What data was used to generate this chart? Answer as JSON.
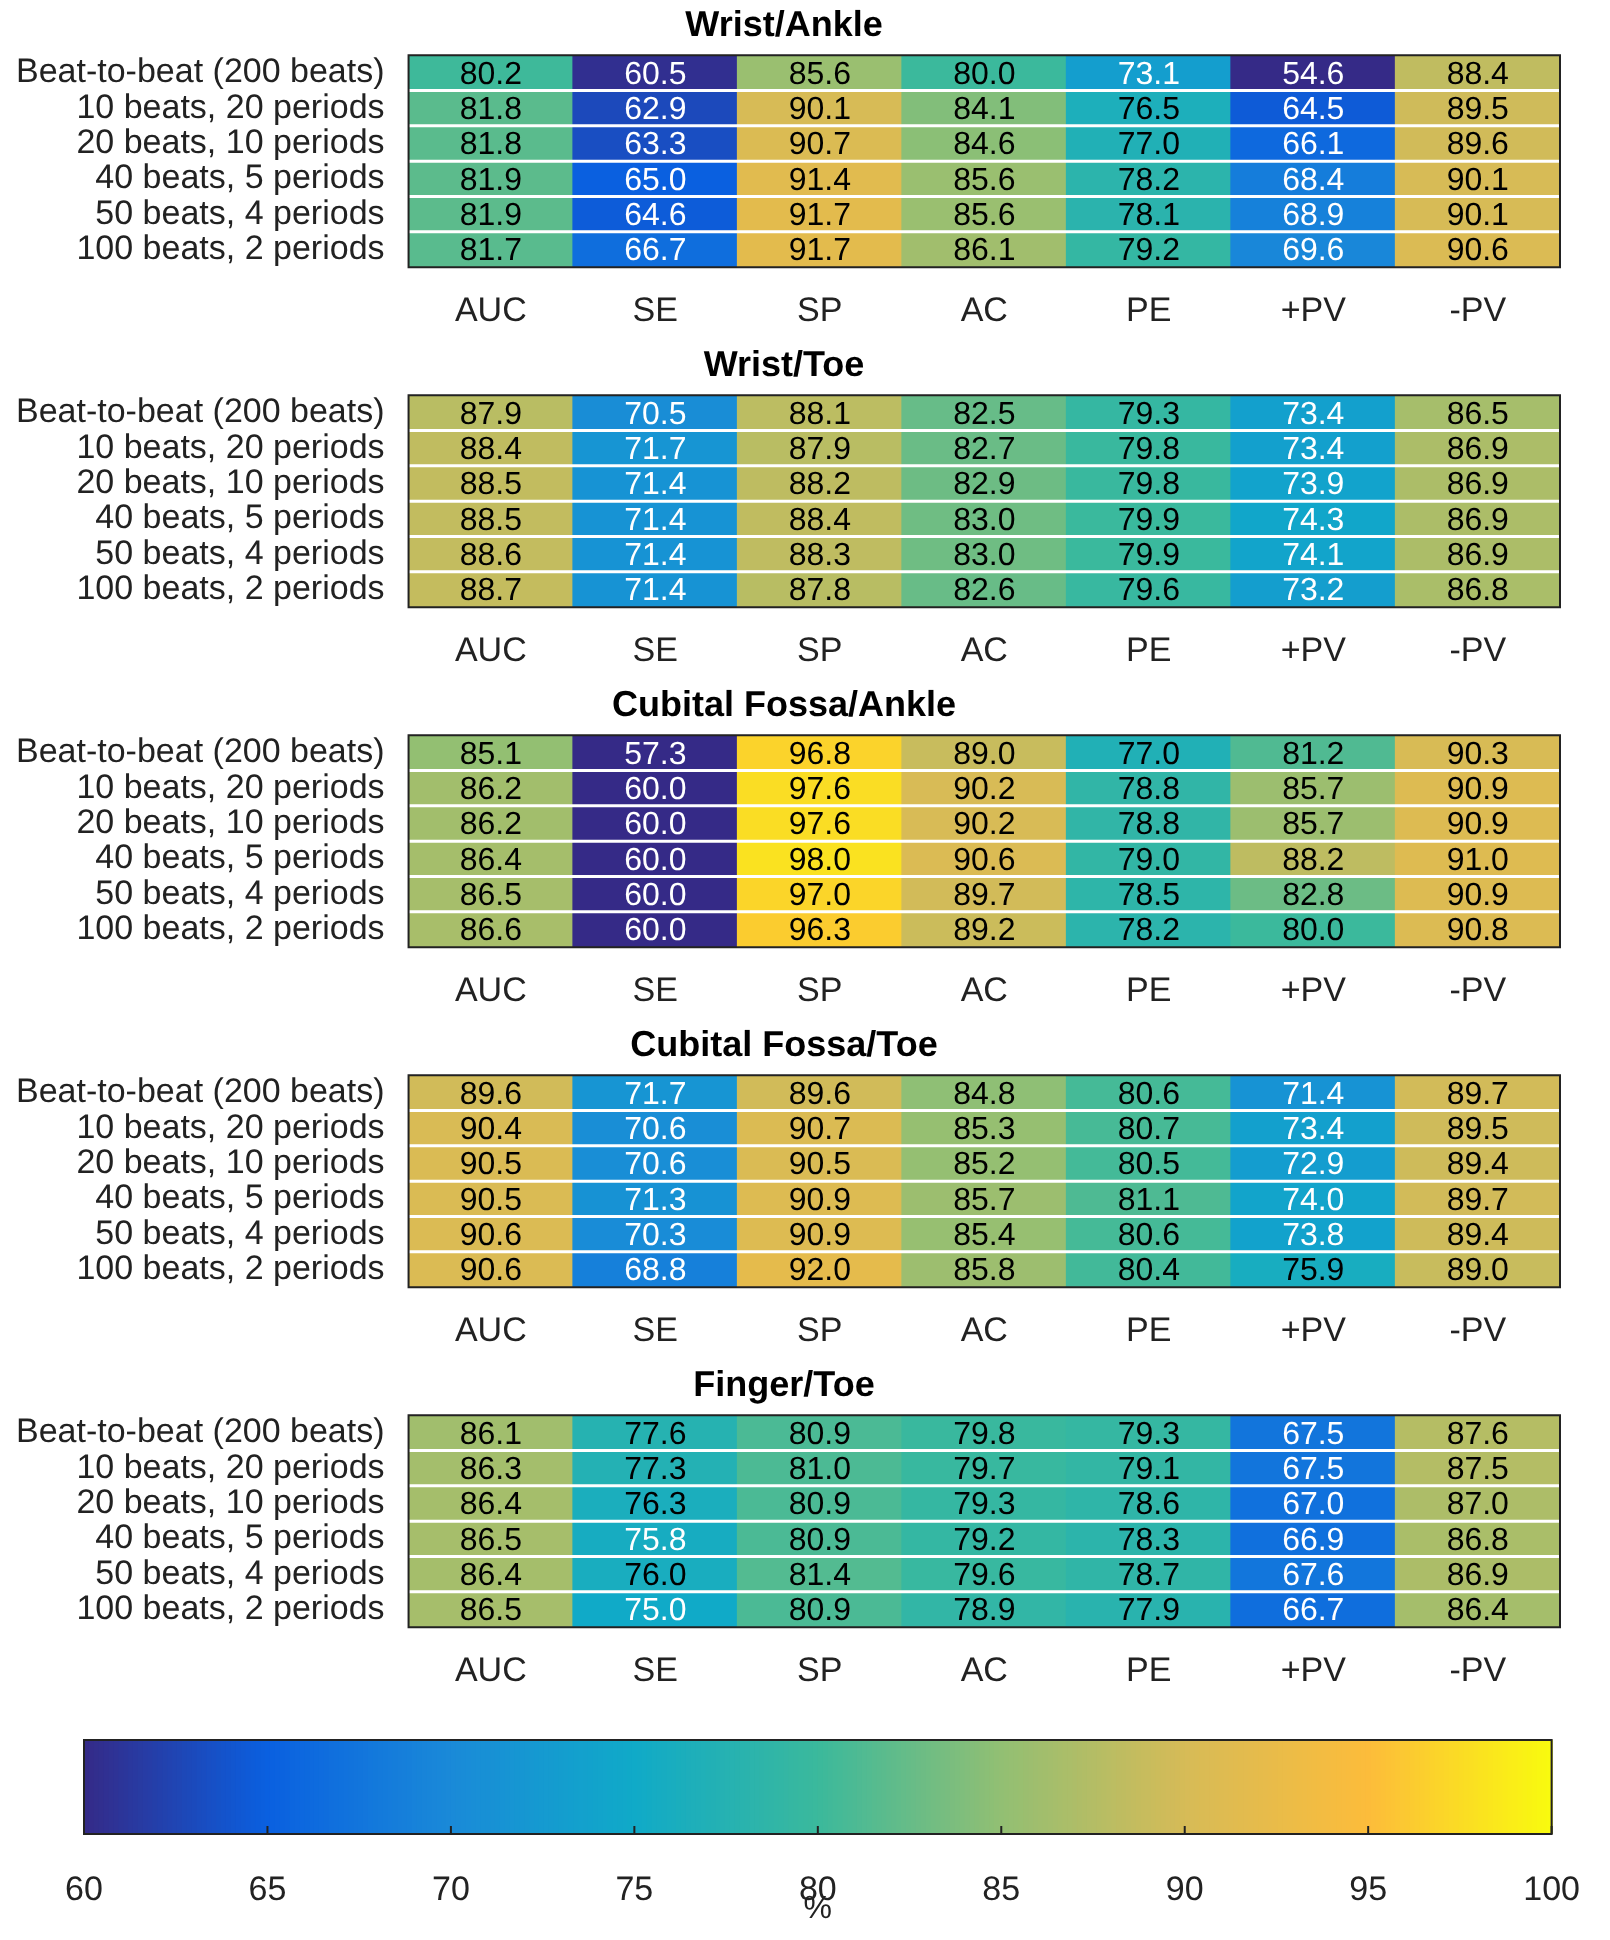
{
  "chart_data": [
    {
      "type": "heatmap",
      "title": "Wrist/Ankle",
      "categories": [
        "AUC",
        "SE",
        "SP",
        "AC",
        "PE",
        "+PV",
        "-PV"
      ],
      "y_categories": [
        "Beat-to-beat (200 beats)",
        "10 beats, 20 periods",
        "20 beats, 10 periods",
        "40 beats, 5 periods",
        "50 beats, 4 periods",
        "100 beats, 2 periods"
      ],
      "cells": [
        [
          80.2,
          60.5,
          85.6,
          80.0,
          73.1,
          54.6,
          88.4
        ],
        [
          81.8,
          62.9,
          90.1,
          84.1,
          76.5,
          64.5,
          89.5
        ],
        [
          81.8,
          63.3,
          90.7,
          84.6,
          77.0,
          66.1,
          89.6
        ],
        [
          81.9,
          65.0,
          91.4,
          85.6,
          78.2,
          68.4,
          90.1
        ],
        [
          81.9,
          64.6,
          91.7,
          85.6,
          78.1,
          68.9,
          90.1
        ],
        [
          81.7,
          66.7,
          91.7,
          86.1,
          79.2,
          69.6,
          90.6
        ]
      ],
      "cell_labels": [
        [
          "80.2",
          "60.5",
          "85.6",
          "80.0",
          "73.1",
          "54.6",
          "88.4"
        ],
        [
          "81.8",
          "62.9",
          "90.1",
          "84.1",
          "76.5",
          "64.5",
          "89.5"
        ],
        [
          "81.8",
          "63.3",
          "90.7",
          "84.6",
          "77.0",
          "66.1",
          "89.6"
        ],
        [
          "81.9",
          "65.0",
          "91.4",
          "85.6",
          "78.2",
          "68.4",
          "90.1"
        ],
        [
          "81.9",
          "64.6",
          "91.7",
          "85.6",
          "78.1",
          "68.9",
          "90.1"
        ],
        [
          "81.7",
          "66.7",
          "91.7",
          "86.1",
          "79.2",
          "69.6",
          "90.6"
        ]
      ],
      "data_labels": true
    },
    {
      "type": "heatmap",
      "title": "Wrist/Toe",
      "categories": [
        "AUC",
        "SE",
        "SP",
        "AC",
        "PE",
        "+PV",
        "-PV"
      ],
      "y_categories": [
        "Beat-to-beat (200 beats)",
        "10 beats, 20 periods",
        "20 beats, 10 periods",
        "40 beats, 5 periods",
        "50 beats, 4 periods",
        "100 beats, 2 periods"
      ],
      "cells": [
        [
          87.9,
          70.5,
          88.1,
          82.5,
          79.3,
          73.4,
          86.5
        ],
        [
          88.4,
          71.7,
          87.9,
          82.7,
          79.8,
          73.4,
          86.9
        ],
        [
          88.5,
          71.4,
          88.2,
          82.9,
          79.8,
          73.9,
          86.9
        ],
        [
          88.5,
          71.4,
          88.4,
          83.0,
          79.9,
          74.3,
          86.9
        ],
        [
          88.6,
          71.4,
          88.3,
          83.0,
          79.9,
          74.1,
          86.9
        ],
        [
          88.7,
          71.4,
          87.8,
          82.6,
          79.6,
          73.2,
          86.8
        ]
      ],
      "cell_labels": [
        [
          "87.9",
          "70.5",
          "88.1",
          "82.5",
          "79.3",
          "73.4",
          "86.5"
        ],
        [
          "88.4",
          "71.7",
          "87.9",
          "82.7",
          "79.8",
          "73.4",
          "86.9"
        ],
        [
          "88.5",
          "71.4",
          "88.2",
          "82.9",
          "79.8",
          "73.9",
          "86.9"
        ],
        [
          "88.5",
          "71.4",
          "88.4",
          "83.0",
          "79.9",
          "74.3",
          "86.9"
        ],
        [
          "88.6",
          "71.4",
          "88.3",
          "83.0",
          "79.9",
          "74.1",
          "86.9"
        ],
        [
          "88.7",
          "71.4",
          "87.8",
          "82.6",
          "79.6",
          "73.2",
          "86.8"
        ]
      ],
      "data_labels": true
    },
    {
      "type": "heatmap",
      "title": "Cubital Fossa/Ankle",
      "categories": [
        "AUC",
        "SE",
        "SP",
        "AC",
        "PE",
        "+PV",
        "-PV"
      ],
      "y_categories": [
        "Beat-to-beat (200 beats)",
        "10 beats, 20 periods",
        "20 beats, 10 periods",
        "40 beats, 5 periods",
        "50 beats, 4 periods",
        "100 beats, 2 periods"
      ],
      "cells": [
        [
          85.1,
          57.3,
          96.8,
          89.0,
          77.0,
          81.2,
          90.3
        ],
        [
          86.2,
          60.0,
          97.6,
          90.2,
          78.8,
          85.7,
          90.9
        ],
        [
          86.2,
          60.0,
          97.6,
          90.2,
          78.8,
          85.7,
          90.9
        ],
        [
          86.4,
          60.0,
          98.0,
          90.6,
          79.0,
          88.2,
          91.0
        ],
        [
          86.5,
          60.0,
          97.0,
          89.7,
          78.5,
          82.8,
          90.9
        ],
        [
          86.6,
          60.0,
          96.3,
          89.2,
          78.2,
          80.0,
          90.8
        ]
      ],
      "cell_labels": [
        [
          "85.1",
          "57.3",
          "96.8",
          "89.0",
          "77.0",
          "81.2",
          "90.3"
        ],
        [
          "86.2",
          "60.0",
          "97.6",
          "90.2",
          "78.8",
          "85.7",
          "90.9"
        ],
        [
          "86.2",
          "60.0",
          "97.6",
          "90.2",
          "78.8",
          "85.7",
          "90.9"
        ],
        [
          "86.4",
          "60.0",
          "98.0",
          "90.6",
          "79.0",
          "88.2",
          "91.0"
        ],
        [
          "86.5",
          "60.0",
          "97.0",
          "89.7",
          "78.5",
          "82.8",
          "90.9"
        ],
        [
          "86.6",
          "60.0",
          "96.3",
          "89.2",
          "78.2",
          "80.0",
          "90.8"
        ]
      ],
      "data_labels": true
    },
    {
      "type": "heatmap",
      "title": "Cubital Fossa/Toe",
      "categories": [
        "AUC",
        "SE",
        "SP",
        "AC",
        "PE",
        "+PV",
        "-PV"
      ],
      "y_categories": [
        "Beat-to-beat (200 beats)",
        "10 beats, 20 periods",
        "20 beats, 10 periods",
        "40 beats, 5 periods",
        "50 beats, 4 periods",
        "100 beats, 2 periods"
      ],
      "cells": [
        [
          89.6,
          71.7,
          89.6,
          84.8,
          80.6,
          71.4,
          89.7
        ],
        [
          90.4,
          70.6,
          90.7,
          85.3,
          80.7,
          73.4,
          89.5
        ],
        [
          90.5,
          70.6,
          90.5,
          85.2,
          80.5,
          72.9,
          89.4
        ],
        [
          90.5,
          71.3,
          90.9,
          85.7,
          81.1,
          74.0,
          89.7
        ],
        [
          90.6,
          70.3,
          90.9,
          85.4,
          80.6,
          73.8,
          89.4
        ],
        [
          90.6,
          68.8,
          92.0,
          85.8,
          80.4,
          75.9,
          89.0
        ]
      ],
      "cell_labels": [
        [
          "89.6",
          "71.7",
          "89.6",
          "84.8",
          "80.6",
          "71.4",
          "89.7"
        ],
        [
          "90.4",
          "70.6",
          "90.7",
          "85.3",
          "80.7",
          "73.4",
          "89.5"
        ],
        [
          "90.5",
          "70.6",
          "90.5",
          "85.2",
          "80.5",
          "72.9",
          "89.4"
        ],
        [
          "90.5",
          "71.3",
          "90.9",
          "85.7",
          "81.1",
          "74.0",
          "89.7"
        ],
        [
          "90.6",
          "70.3",
          "90.9",
          "85.4",
          "80.6",
          "73.8",
          "89.4"
        ],
        [
          "90.6",
          "68.8",
          "92.0",
          "85.8",
          "80.4",
          "75.9",
          "89.0"
        ]
      ],
      "data_labels": true
    },
    {
      "type": "heatmap",
      "title": "Finger/Toe",
      "categories": [
        "AUC",
        "SE",
        "SP",
        "AC",
        "PE",
        "+PV",
        "-PV"
      ],
      "y_categories": [
        "Beat-to-beat (200 beats)",
        "10 beats, 20 periods",
        "20 beats, 10 periods",
        "40 beats, 5 periods",
        "50 beats, 4 periods",
        "100 beats, 2 periods"
      ],
      "cells": [
        [
          86.1,
          77.6,
          80.9,
          79.8,
          79.3,
          67.5,
          87.6
        ],
        [
          86.3,
          77.3,
          81.0,
          79.7,
          79.1,
          67.5,
          87.5
        ],
        [
          86.4,
          76.3,
          80.9,
          79.3,
          78.6,
          67.0,
          87.0
        ],
        [
          86.5,
          75.8,
          80.9,
          79.2,
          78.3,
          66.9,
          86.8
        ],
        [
          86.4,
          76.0,
          81.4,
          79.6,
          78.7,
          67.6,
          86.9
        ],
        [
          86.5,
          75.0,
          80.9,
          78.9,
          77.9,
          66.7,
          86.4
        ]
      ],
      "cell_labels": [
        [
          "86.1",
          "77.6",
          "80.9",
          "79.8",
          "79.3",
          "67.5",
          "87.6"
        ],
        [
          "86.3",
          "77.3",
          "81.0",
          "79.7",
          "79.1",
          "67.5",
          "87.5"
        ],
        [
          "86.4",
          "76.3",
          "80.9",
          "79.3",
          "78.6",
          "67.0",
          "87.0"
        ],
        [
          "86.5",
          "75.8",
          "80.9",
          "79.2",
          "78.3",
          "66.9",
          "86.8"
        ],
        [
          "86.4",
          "76.0",
          "81.4",
          "79.6",
          "78.7",
          "67.6",
          "86.9"
        ],
        [
          "86.5",
          "75.0",
          "80.9",
          "78.9",
          "77.9",
          "66.7",
          "86.4"
        ]
      ],
      "clim": [
        60,
        100
      ],
      "cticks": [
        60,
        65,
        70,
        75,
        80,
        85,
        90,
        95,
        100
      ],
      "clabel": "%",
      "data_labels": true
    }
  ]
}
